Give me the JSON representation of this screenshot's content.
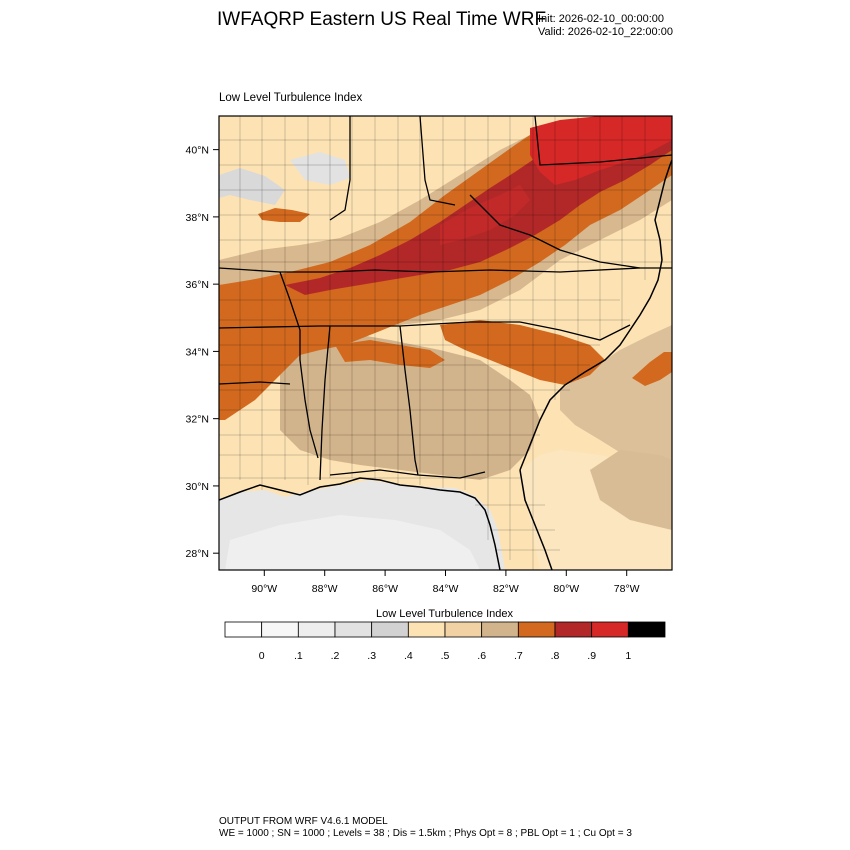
{
  "header": {
    "title": "IWFAQRP Eastern US Real Time WRF",
    "init": "Init: 2026-02-10_00:00:00",
    "valid": "Valid: 2026-02-10_22:00:00"
  },
  "map": {
    "panel_title": "Low Level Turbulence Index",
    "lon_range": [
      -91.5,
      -76.5
    ],
    "lat_range": [
      27.5,
      41.0
    ],
    "lon_ticks": [
      {
        "value": -90,
        "label": "90°W"
      },
      {
        "value": -88,
        "label": "88°W"
      },
      {
        "value": -86,
        "label": "86°W"
      },
      {
        "value": -84,
        "label": "84°W"
      },
      {
        "value": -82,
        "label": "82°W"
      },
      {
        "value": -80,
        "label": "80°W"
      },
      {
        "value": -78,
        "label": "78°W"
      }
    ],
    "lat_ticks": [
      {
        "value": 28,
        "label": "28°N"
      },
      {
        "value": 30,
        "label": "30°N"
      },
      {
        "value": 32,
        "label": "32°N"
      },
      {
        "value": 34,
        "label": "34°N"
      },
      {
        "value": 36,
        "label": "36°N"
      },
      {
        "value": 38,
        "label": "38°N"
      },
      {
        "value": 40,
        "label": "40°N"
      }
    ]
  },
  "colorbar": {
    "title": "Low Level Turbulence Index",
    "colors": [
      "#ffffff",
      "#f7f7f7",
      "#eeeeee",
      "#e2e2e2",
      "#d2d2d2",
      "#fde3b4",
      "#f0d2a4",
      "#d2b48c",
      "#d2691e",
      "#b22828",
      "#d72828",
      "#000000"
    ],
    "labels": [
      "0",
      ".1",
      ".2",
      ".3",
      ".4",
      ".5",
      ".6",
      ".7",
      ".8",
      ".9",
      "1"
    ]
  },
  "footer": {
    "line1": "OUTPUT FROM WRF V4.6.1 MODEL",
    "line2": "WE = 1000 ; SN = 1000 ; Levels = 38 ; Dis = 1.5km ; Phys Opt = 8 ; PBL Opt = 1 ; Cu Opt = 3"
  }
}
